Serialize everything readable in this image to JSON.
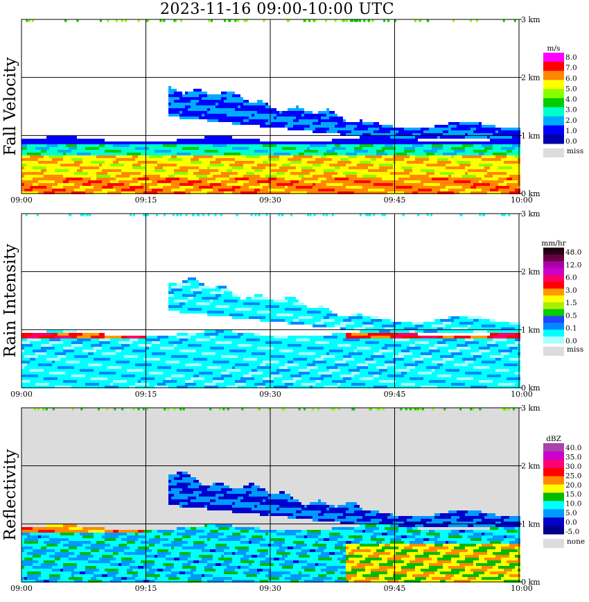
{
  "title": "2023-11-16   09:00-10:00 UTC",
  "time_ticks": [
    "09:00",
    "09:15",
    "09:30",
    "09:45",
    "10:00"
  ],
  "height_ticks": [
    "0 km",
    "1 km",
    "2 km",
    "3 km"
  ],
  "colors": {
    "grid": "#000000",
    "missing": "#dcdcdc"
  },
  "chart_data": [
    {
      "type": "heatmap",
      "ylabel": "Fall Velocity",
      "x": [
        "09:00",
        "09:15",
        "09:30",
        "09:45",
        "10:00"
      ],
      "xlim": [
        "09:00",
        "10:00"
      ],
      "ylim_km": [
        0,
        3
      ],
      "y_ticks_km": [
        0,
        1,
        2,
        3
      ],
      "colorbar": {
        "unit": "m/s",
        "levels": [
          "8.0",
          "7.0",
          "6.0",
          "5.0",
          "4.0",
          "3.0",
          "2.0",
          "1.0",
          "0.0"
        ],
        "colors": [
          "#ff00ff",
          "#ff0000",
          "#ff8800",
          "#ffff00",
          "#88ff00",
          "#00cc00",
          "#00ffcc",
          "#00aaff",
          "#0000ff",
          "#0000aa"
        ],
        "missing_label": "miss"
      },
      "background": "#ffffff"
    },
    {
      "type": "heatmap",
      "ylabel": "Rain Intensity",
      "x": [
        "09:00",
        "09:15",
        "09:30",
        "09:45",
        "10:00"
      ],
      "xlim": [
        "09:00",
        "10:00"
      ],
      "ylim_km": [
        0,
        3
      ],
      "y_ticks_km": [
        0,
        1,
        2,
        3
      ],
      "colorbar": {
        "unit": "mm/hr",
        "levels": [
          "48.0",
          "12.0",
          "6.0",
          "3.0",
          "1.5",
          "0.5",
          "0.1",
          "0.0"
        ],
        "colors": [
          "#220011",
          "#660044",
          "#aa00aa",
          "#cc00cc",
          "#ff0066",
          "#ff0000",
          "#ff9900",
          "#ffff00",
          "#aaee00",
          "#00cc00",
          "#2244ff",
          "#0088ff",
          "#00ffff",
          "#aaffff"
        ],
        "missing_label": "miss"
      },
      "background": "#ffffff"
    },
    {
      "type": "heatmap",
      "ylabel": "Reflectivity",
      "x": [
        "09:00",
        "09:15",
        "09:30",
        "09:45",
        "10:00"
      ],
      "xlim": [
        "09:00",
        "10:00"
      ],
      "ylim_km": [
        0,
        3
      ],
      "y_ticks_km": [
        0,
        1,
        2,
        3
      ],
      "colorbar": {
        "unit": "dBZ",
        "levels": [
          "40.0",
          "35.0",
          "30.0",
          "25.0",
          "20.0",
          "15.0",
          "10.0",
          "5.0",
          "0.0",
          "-5.0"
        ],
        "colors": [
          "#aa44aa",
          "#cc00cc",
          "#ff0077",
          "#ff0000",
          "#ff8800",
          "#ffff00",
          "#00bb00",
          "#00ffff",
          "#0099ff",
          "#0000cc",
          "#000088"
        ],
        "missing_label": "none"
      },
      "background": "#dcdcdc"
    }
  ]
}
